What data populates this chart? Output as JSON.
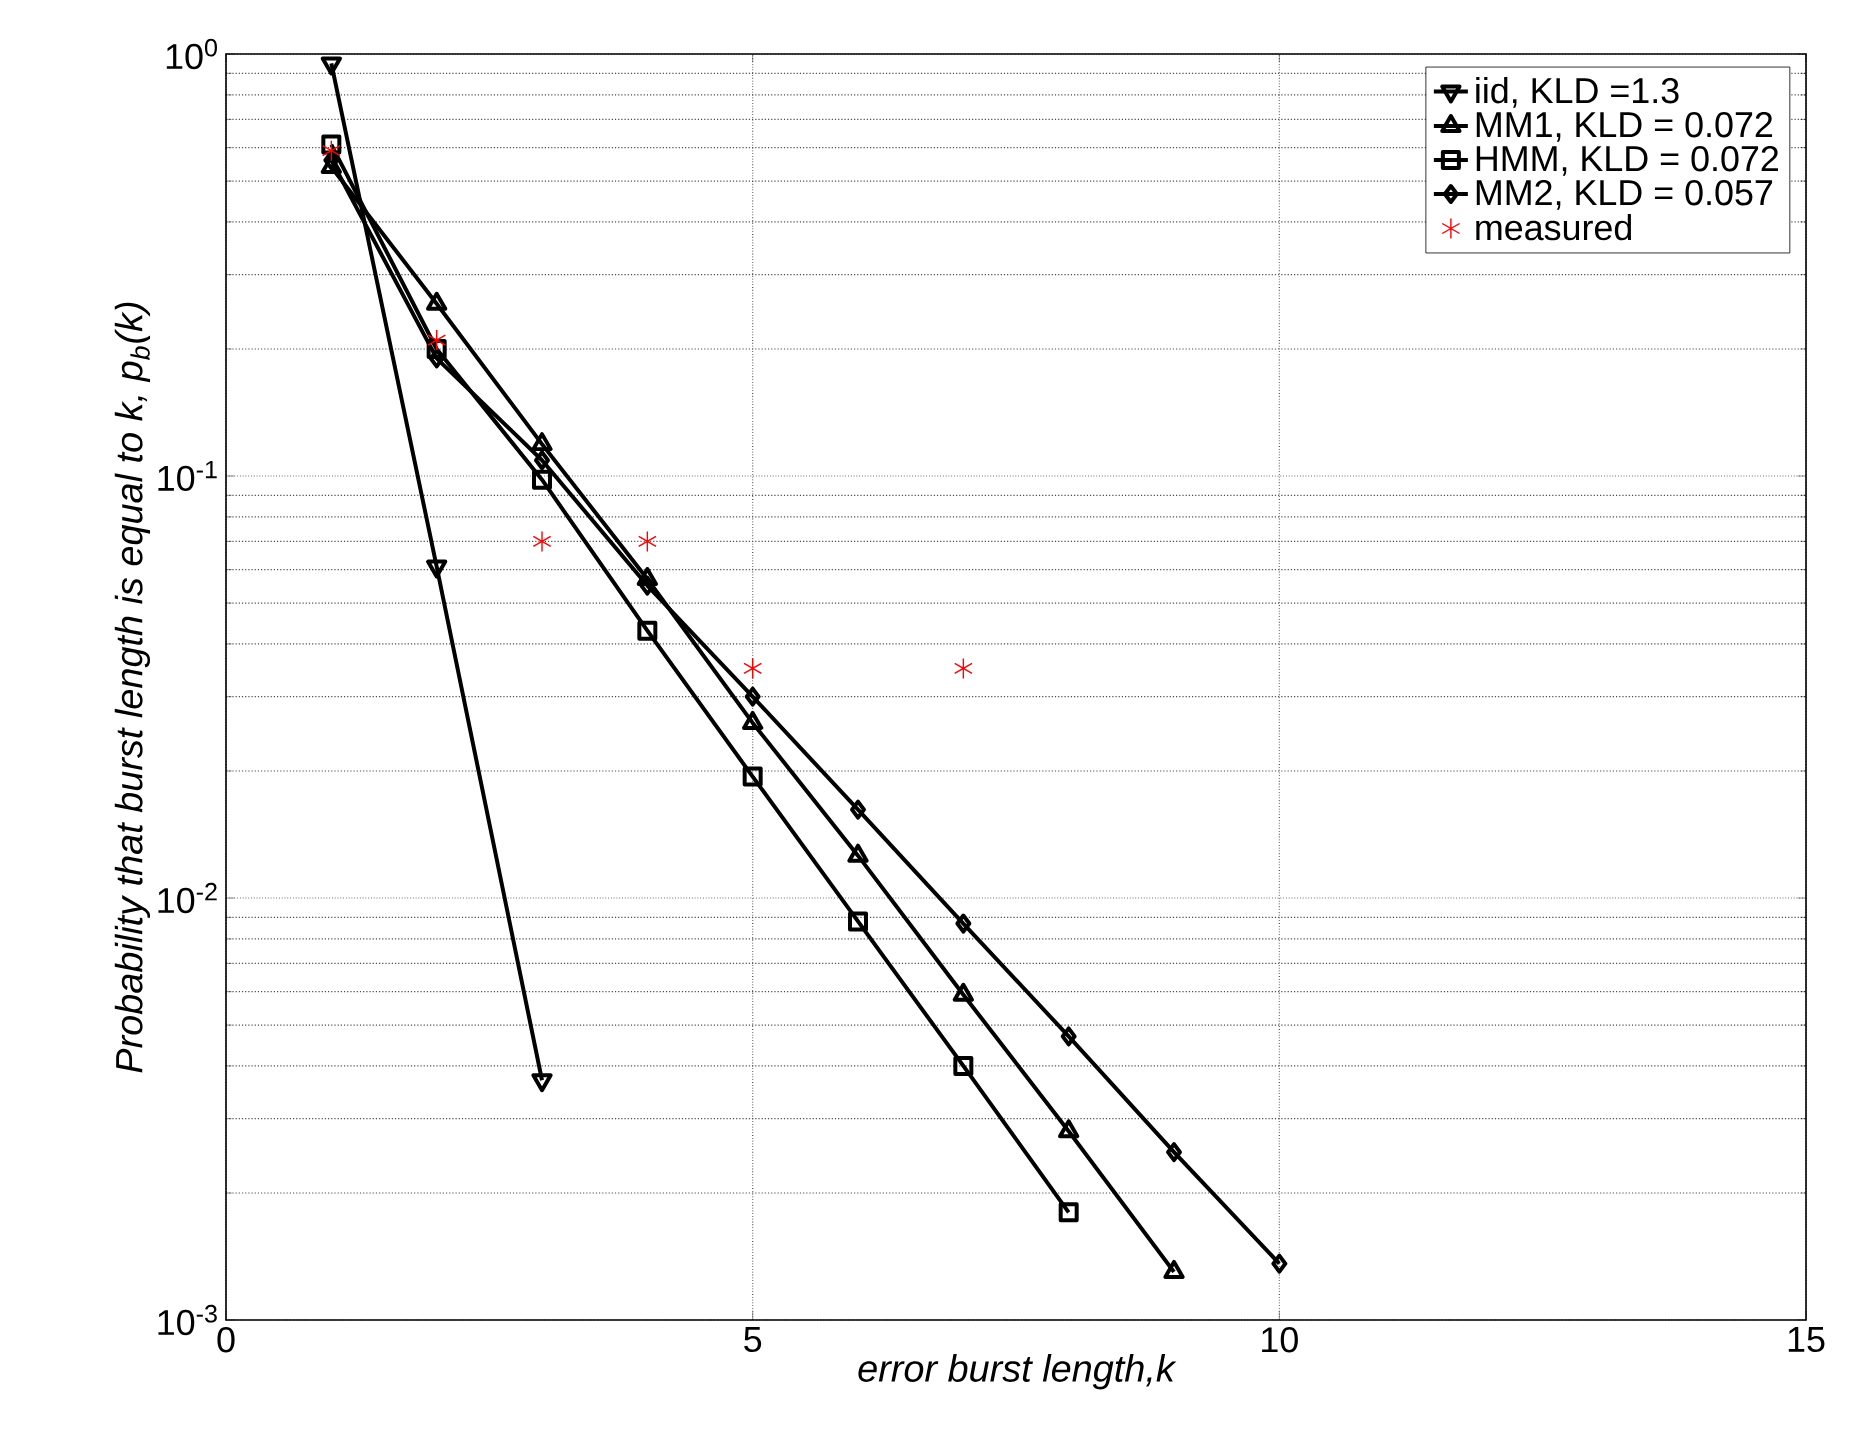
{
  "chart_data": {
    "type": "line",
    "xlabel": "error burst length,k",
    "ylabel": "Probability that burst length is equal to k, p$_{b}$(k)",
    "log": "y",
    "grid": true,
    "legend": "top right",
    "line_style": "solid",
    "xlim": [
      0,
      15
    ],
    "xticks": [
      0,
      5,
      10,
      15
    ],
    "ylim": [
      0.001,
      1
    ],
    "yticks": [
      {
        "value": 0.001,
        "label": "10$^{-3}$"
      },
      {
        "value": 0.01,
        "label": "10$^{-2}$"
      },
      {
        "value": 0.1,
        "label": "10$^{-1}$"
      },
      {
        "value": 1,
        "label": "10$^{0}$"
      }
    ],
    "series": [
      {
        "name": "iid, KLD =1.3",
        "marker": "triangle-down",
        "color": "#000000",
        "x": [
          1,
          2,
          3
        ],
        "values": [
          0.95,
          0.061,
          0.0037
        ]
      },
      {
        "name": "MM1, KLD = 0.072",
        "marker": "triangle",
        "color": "#000000",
        "x": [
          1,
          2,
          3,
          4,
          5,
          6,
          7,
          8,
          9
        ],
        "values": [
          0.54,
          0.256,
          0.119,
          0.057,
          0.026,
          0.0126,
          0.0059,
          0.0028,
          0.0013
        ]
      },
      {
        "name": "HMM, KLD = 0.072",
        "marker": "square",
        "color": "#000000",
        "x": [
          1,
          2,
          3,
          4,
          5,
          6,
          7,
          8
        ],
        "values": [
          0.61,
          0.2,
          0.098,
          0.043,
          0.0194,
          0.0088,
          0.004,
          0.0018
        ]
      },
      {
        "name": "MM2, KLD = 0.057",
        "marker": "diamond",
        "color": "#000000",
        "x": [
          1,
          2,
          3,
          4,
          5,
          6,
          7,
          8,
          9,
          10
        ],
        "values": [
          0.56,
          0.19,
          0.109,
          0.055,
          0.03,
          0.0162,
          0.0087,
          0.0047,
          0.0025,
          0.00136
        ]
      },
      {
        "name": "measured",
        "type": "scatter",
        "marker": "cross",
        "color": "#ff0000",
        "x": [
          1,
          2,
          3,
          4,
          5,
          7
        ],
        "values": [
          0.59,
          0.21,
          0.07,
          0.07,
          0.035,
          0.035
        ]
      }
    ]
  }
}
